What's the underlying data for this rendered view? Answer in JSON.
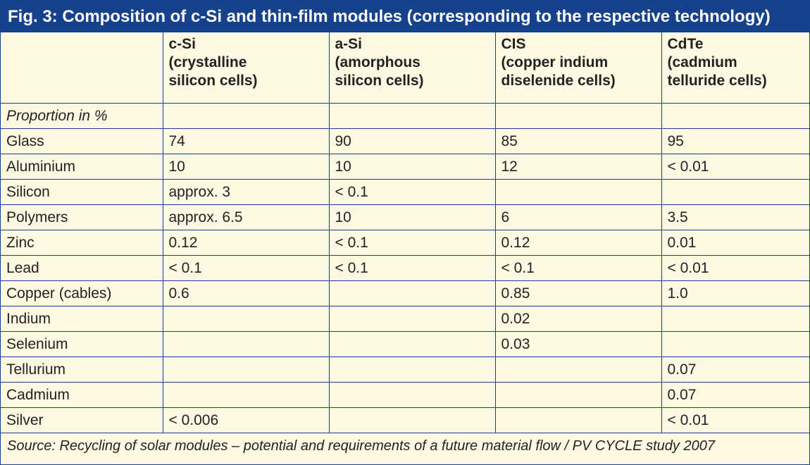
{
  "title": "Fig. 3: Composition of c-Si and thin-film modules (corresponding to the respective technology)",
  "table": {
    "headers": [
      "",
      "c-Si\n(crystalline\nsilicon cells)",
      "a-Si\n(amorphous\n silicon cells)",
      "CIS\n(copper indium\ndiselenide cells)",
      "CdTe\n(cadmium\ntelluride cells)"
    ],
    "rows": [
      [
        "Proportion in %",
        "",
        "",
        "",
        ""
      ],
      [
        "Glass",
        "74",
        "90",
        "85",
        "95"
      ],
      [
        "Aluminium",
        "10",
        "10",
        "12",
        "< 0.01"
      ],
      [
        "Silicon",
        "approx. 3",
        "< 0.1",
        "",
        ""
      ],
      [
        "Polymers",
        "approx. 6.5",
        "10",
        "6",
        "3.5"
      ],
      [
        "Zinc",
        "0.12",
        "< 0.1",
        "0.12",
        "0.01"
      ],
      [
        "Lead",
        "< 0.1",
        "< 0.1",
        "< 0.1",
        "< 0.01"
      ],
      [
        "Copper (cables)",
        "0.6",
        "",
        "0.85",
        "1.0"
      ],
      [
        "Indium",
        "",
        "",
        "0.02",
        ""
      ],
      [
        "Selenium",
        "",
        "",
        "0.03",
        ""
      ],
      [
        "Tellurium",
        "",
        "",
        "",
        "0.07"
      ],
      [
        "Cadmium",
        "",
        "",
        "",
        "0.07"
      ],
      [
        "Silver",
        "< 0.006",
        "",
        "",
        "< 0.01"
      ]
    ]
  },
  "source": "Source: Recycling of solar modules – potential and requirements of a future material flow / PV CYCLE study 2007"
}
